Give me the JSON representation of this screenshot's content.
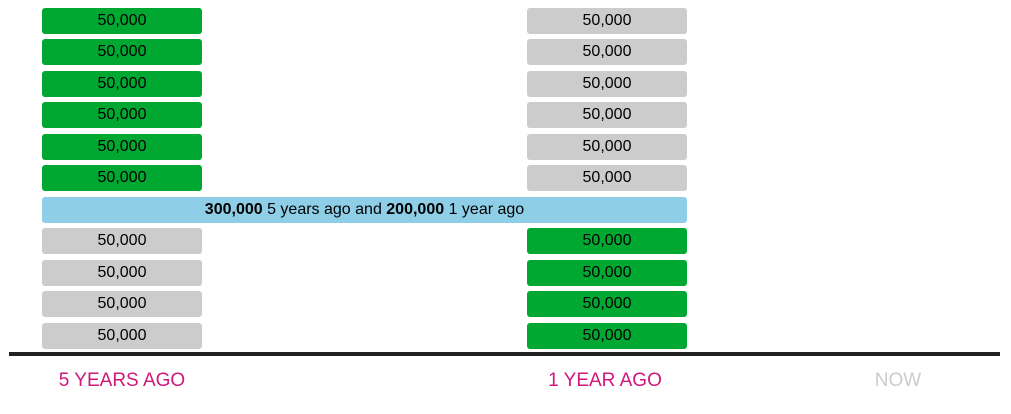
{
  "colors": {
    "active_block": "#00a832",
    "inactive_block": "#cccccc",
    "banner": "#8ecfe7",
    "axis": "#222222",
    "label_active": "#d0177a",
    "label_inactive": "#cccccc"
  },
  "columns": [
    {
      "id": "five-years-ago",
      "blocks": [
        {
          "label": "50,000",
          "state": "active"
        },
        {
          "label": "50,000",
          "state": "active"
        },
        {
          "label": "50,000",
          "state": "active"
        },
        {
          "label": "50,000",
          "state": "active"
        },
        {
          "label": "50,000",
          "state": "active"
        },
        {
          "label": "50,000",
          "state": "active"
        },
        {
          "label": "50,000",
          "state": "inactive"
        },
        {
          "label": "50,000",
          "state": "inactive"
        },
        {
          "label": "50,000",
          "state": "inactive"
        },
        {
          "label": "50,000",
          "state": "inactive"
        }
      ]
    },
    {
      "id": "one-year-ago",
      "blocks": [
        {
          "label": "50,000",
          "state": "inactive"
        },
        {
          "label": "50,000",
          "state": "inactive"
        },
        {
          "label": "50,000",
          "state": "inactive"
        },
        {
          "label": "50,000",
          "state": "inactive"
        },
        {
          "label": "50,000",
          "state": "inactive"
        },
        {
          "label": "50,000",
          "state": "inactive"
        },
        {
          "label": "50,000",
          "state": "active"
        },
        {
          "label": "50,000",
          "state": "active"
        },
        {
          "label": "50,000",
          "state": "active"
        },
        {
          "label": "50,000",
          "state": "active"
        }
      ]
    }
  ],
  "banner": {
    "value_a": "300,000",
    "text_a": " 5 years ago and ",
    "value_b": "200,000",
    "text_b": " 1 year ago"
  },
  "timeline": {
    "five_years_ago": "5 YEARS AGO",
    "one_year_ago": "1 YEAR AGO",
    "now": "NOW"
  }
}
